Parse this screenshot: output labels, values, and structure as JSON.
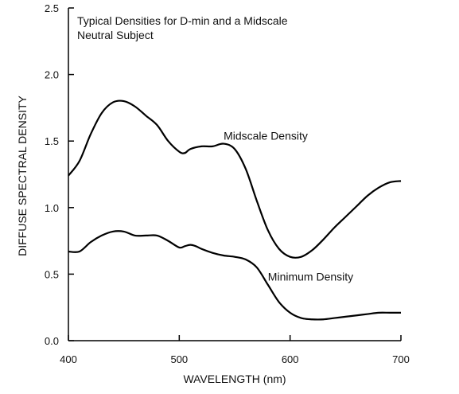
{
  "chart_data": {
    "type": "line",
    "title": "Typical Densities for D-min and a Midscale Neutral Subject",
    "title_lines": [
      "Typical Densities for D-min and a Midscale",
      "Neutral Subject"
    ],
    "xlabel": "WAVELENGTH (nm)",
    "ylabel": "DIFFUSE SPECTRAL DENSITY",
    "xlim": [
      400,
      700
    ],
    "ylim": [
      0.0,
      2.5
    ],
    "x_ticks": [
      400,
      500,
      600,
      700
    ],
    "x_tick_labels": [
      "400",
      "500",
      "600",
      "700"
    ],
    "y_ticks": [
      0.0,
      0.5,
      1.0,
      1.5,
      2.0,
      2.5
    ],
    "y_tick_labels": [
      "0.0",
      "0.5",
      "1.0",
      "1.5",
      "2.0",
      "2.5"
    ],
    "grid": false,
    "legend": "none",
    "series": [
      {
        "name": "Midscale Density",
        "x": [
          400,
          410,
          420,
          430,
          440,
          450,
          460,
          470,
          480,
          490,
          500,
          505,
          510,
          520,
          530,
          540,
          550,
          560,
          570,
          580,
          590,
          600,
          610,
          620,
          630,
          640,
          650,
          660,
          670,
          680,
          690,
          700
        ],
        "y": [
          1.24,
          1.35,
          1.55,
          1.71,
          1.79,
          1.8,
          1.76,
          1.69,
          1.62,
          1.5,
          1.42,
          1.41,
          1.44,
          1.46,
          1.46,
          1.48,
          1.44,
          1.29,
          1.05,
          0.83,
          0.69,
          0.63,
          0.63,
          0.68,
          0.76,
          0.85,
          0.93,
          1.01,
          1.09,
          1.15,
          1.19,
          1.2
        ]
      },
      {
        "name": "Minimum Density",
        "x": [
          400,
          410,
          420,
          430,
          440,
          450,
          460,
          470,
          480,
          490,
          500,
          505,
          510,
          515,
          520,
          530,
          540,
          550,
          560,
          570,
          580,
          590,
          600,
          610,
          620,
          630,
          640,
          650,
          660,
          670,
          680,
          690,
          700
        ],
        "y": [
          0.67,
          0.67,
          0.74,
          0.79,
          0.82,
          0.82,
          0.79,
          0.79,
          0.79,
          0.75,
          0.7,
          0.71,
          0.72,
          0.71,
          0.69,
          0.66,
          0.64,
          0.63,
          0.61,
          0.55,
          0.42,
          0.29,
          0.21,
          0.17,
          0.16,
          0.16,
          0.17,
          0.18,
          0.19,
          0.2,
          0.21,
          0.21,
          0.21
        ]
      }
    ],
    "annotations": [
      {
        "text": "Midscale Density",
        "x": 540,
        "y": 1.54
      },
      {
        "text": "Minimum Density",
        "x": 580,
        "y": 0.48
      }
    ]
  }
}
